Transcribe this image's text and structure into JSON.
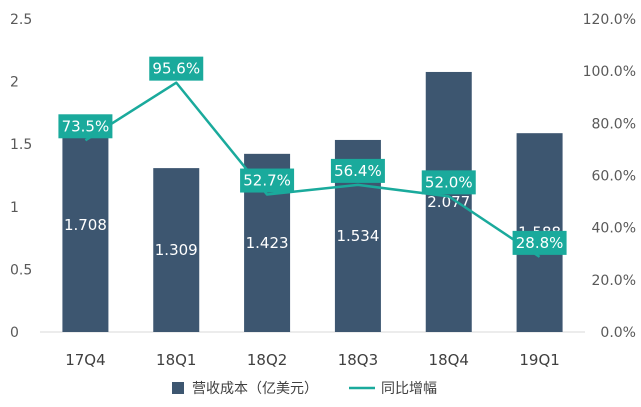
{
  "chart_data": {
    "type": "bar",
    "categories": [
      "17Q4",
      "18Q1",
      "18Q2",
      "18Q3",
      "18Q4",
      "19Q1"
    ],
    "series": [
      {
        "name": "营收成本（亿美元）",
        "type": "bar",
        "axis": "left",
        "values": [
          1.708,
          1.309,
          1.423,
          1.534,
          2.077,
          1.588
        ],
        "labels": [
          "1.708",
          "1.309",
          "1.423",
          "1.534",
          "2.077",
          "1.588"
        ]
      },
      {
        "name": "同比增幅",
        "type": "line",
        "axis": "right",
        "values": [
          73.5,
          95.6,
          52.7,
          56.4,
          52.0,
          28.8
        ],
        "labels": [
          "73.5%",
          "95.6%",
          "52.7%",
          "56.4%",
          "52.0%",
          "28.8%"
        ]
      }
    ],
    "y_left": {
      "ylim": [
        0,
        2.5
      ],
      "ticks": [
        "0",
        "0.5",
        "1",
        "1.5",
        "2",
        "2.5"
      ]
    },
    "y_right": {
      "ylim": [
        0,
        120
      ],
      "ticks": [
        "0.0%",
        "20.0%",
        "40.0%",
        "60.0%",
        "80.0%",
        "100.0%",
        "120.0%"
      ]
    },
    "title": "",
    "xlabel": "",
    "ylabel": "",
    "grid": false,
    "legend_position": "bottom",
    "colors": {
      "bar": "#3d5670",
      "line": "#1aaa9c",
      "label_box": "#1aaa9c",
      "axis_text": "#595959"
    }
  }
}
